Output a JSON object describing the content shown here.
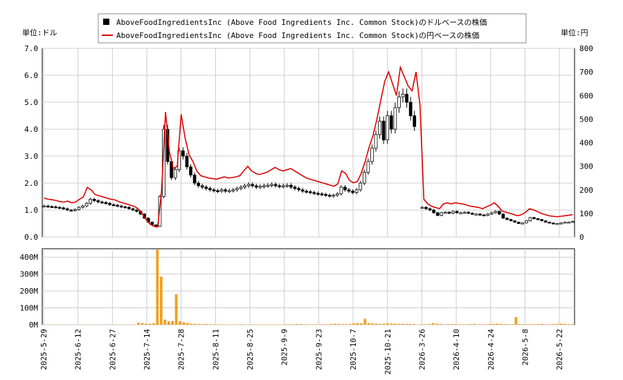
{
  "chart_data": [
    {
      "type": "candlestick+line",
      "legend": [
        {
          "label": "AboveFoodIngredientsInc (Above Food Ingredients Inc. Common Stock)のドルベースの株価",
          "color": "#000000",
          "marker": "square"
        },
        {
          "label": "AboveFoodIngredientsInc (Above Food Ingredients Inc. Common Stock)の円ベースの株価",
          "color": "#dd0000",
          "marker": "line"
        }
      ],
      "left_unit_label": "単位:ドル",
      "right_unit_label": "単位:円",
      "left_ylim": [
        0,
        7
      ],
      "left_ticks": [
        "0.0",
        "1.0",
        "2.0",
        "3.0",
        "4.0",
        "5.0",
        "6.0",
        "7.0"
      ],
      "right_ylim": [
        0,
        800
      ],
      "right_ticks": [
        "0",
        "100",
        "200",
        "300",
        "400",
        "500",
        "600",
        "700",
        "800"
      ],
      "grid": true,
      "usd_series": [
        1.15,
        1.13,
        1.12,
        1.1,
        1.08,
        1.05,
        1.0,
        0.98,
        1.02,
        1.1,
        1.15,
        1.25,
        1.4,
        1.35,
        1.3,
        1.28,
        1.25,
        1.2,
        1.18,
        1.15,
        1.12,
        1.1,
        1.05,
        1.0,
        0.95,
        0.85,
        0.7,
        0.55,
        0.45,
        0.4,
        1.5,
        4.0,
        2.8,
        2.2,
        2.5,
        3.2,
        3.0,
        2.6,
        2.3,
        2.0,
        1.9,
        1.85,
        1.8,
        1.75,
        1.72,
        1.7,
        1.75,
        1.7,
        1.72,
        1.75,
        1.8,
        1.85,
        1.9,
        1.95,
        1.9,
        1.85,
        1.88,
        1.9,
        1.92,
        1.95,
        1.9,
        1.88,
        1.9,
        1.92,
        1.85,
        1.8,
        1.75,
        1.7,
        1.68,
        1.65,
        1.62,
        1.6,
        1.58,
        1.55,
        1.52,
        1.55,
        1.6,
        1.85,
        1.75,
        1.7,
        1.65,
        1.75,
        2.0,
        2.4,
        2.8,
        3.3,
        3.8,
        4.3,
        3.6,
        4.5,
        4.0,
        4.8,
        5.2,
        5.3,
        5.0,
        4.5,
        4.1,
        0.0,
        1.1,
        1.05,
        1.0,
        0.9,
        0.8,
        0.9,
        0.92,
        0.88,
        0.95,
        0.9,
        0.9,
        0.92,
        0.88,
        0.85,
        0.85,
        0.82,
        0.8,
        0.85,
        0.9,
        0.95,
        0.85,
        0.7,
        0.65,
        0.6,
        0.55,
        0.5,
        0.52,
        0.6,
        0.72,
        0.68,
        0.65,
        0.6,
        0.55,
        0.52,
        0.5,
        0.5,
        0.52,
        0.55,
        0.55,
        0.58
      ],
      "jpy_series": [
        165,
        160,
        158,
        155,
        150,
        148,
        152,
        145,
        148,
        160,
        170,
        210,
        200,
        180,
        175,
        170,
        165,
        160,
        158,
        150,
        145,
        140,
        135,
        130,
        120,
        100,
        75,
        55,
        45,
        42,
        200,
        530,
        360,
        290,
        300,
        520,
        420,
        350,
        320,
        280,
        260,
        255,
        250,
        248,
        245,
        250,
        255,
        250,
        252,
        255,
        260,
        280,
        300,
        280,
        270,
        265,
        270,
        275,
        285,
        295,
        285,
        280,
        285,
        290,
        280,
        270,
        260,
        250,
        245,
        240,
        235,
        230,
        225,
        220,
        215,
        225,
        280,
        270,
        240,
        230,
        235,
        270,
        320,
        380,
        430,
        500,
        580,
        660,
        700,
        650,
        600,
        720,
        680,
        640,
        620,
        700,
        560,
        160,
        140,
        130,
        125,
        120,
        140,
        145,
        140,
        145,
        142,
        140,
        135,
        130,
        128,
        125,
        120,
        128,
        135,
        145,
        130,
        110,
        105,
        100,
        95,
        90,
        95,
        105,
        120,
        115,
        108,
        100,
        95,
        90,
        88,
        86,
        88,
        90,
        92,
        95
      ],
      "x_ticks": [
        "2025-5-29",
        "2025-6-12",
        "2025-6-27",
        "2025-7-14",
        "2025-7-28",
        "2025-8-11",
        "2025-8-25",
        "2025-9-9",
        "2025-9-23",
        "2025-10-7",
        "2025-10-21",
        "2026-3-26",
        "2026-4-10",
        "2026-4-24",
        "2026-5-8",
        "2026-5-22"
      ]
    },
    {
      "type": "bar",
      "title": "",
      "ylim": [
        0,
        450000000
      ],
      "y_ticks": [
        "0M",
        "100M",
        "200M",
        "300M",
        "400M"
      ],
      "volume_color": "#f0a020",
      "volumes_m": [
        2,
        1,
        1,
        1,
        1,
        1,
        1,
        1,
        1,
        1,
        1,
        1,
        1,
        1,
        1,
        1,
        1,
        1,
        1,
        1,
        1,
        1,
        1,
        1,
        1,
        12,
        10,
        5,
        6,
        8,
        445,
        285,
        30,
        20,
        22,
        180,
        20,
        15,
        10,
        6,
        5,
        4,
        3,
        4,
        3,
        3,
        2,
        3,
        2,
        2,
        2,
        2,
        3,
        2,
        2,
        2,
        2,
        2,
        2,
        2,
        2,
        2,
        2,
        2,
        3,
        3,
        3,
        4,
        4,
        3,
        2,
        2,
        3,
        2,
        3,
        3,
        4,
        6,
        5,
        4,
        4,
        5,
        8,
        10,
        8,
        35,
        10,
        8,
        6,
        5,
        6,
        8,
        7,
        6,
        5,
        6,
        5,
        5,
        4,
        0,
        3,
        3,
        4,
        10,
        6,
        4,
        3,
        4,
        4,
        3,
        3,
        3,
        3,
        4,
        5,
        3,
        3,
        3,
        4,
        5,
        6,
        5,
        4,
        3,
        3,
        45,
        4,
        3,
        3,
        3,
        3,
        4,
        5,
        3,
        3,
        4,
        5,
        6,
        5,
        4,
        4
      ]
    }
  ]
}
